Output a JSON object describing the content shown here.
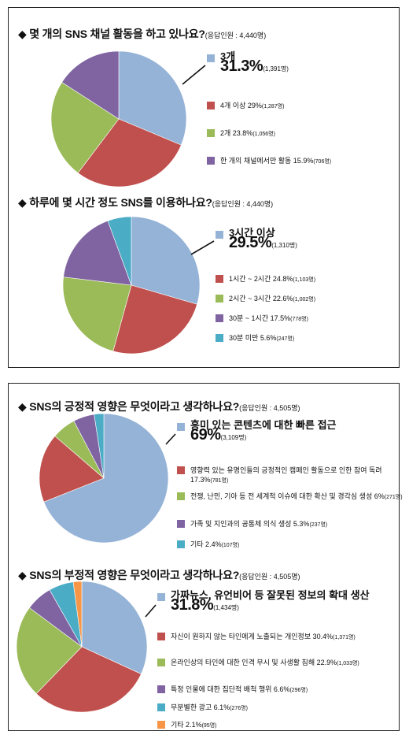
{
  "colors": {
    "blue": "#95b3d7",
    "red": "#c0504d",
    "green": "#9bbb59",
    "purple": "#8064a2",
    "teal": "#4bacc6",
    "orange": "#f79646"
  },
  "chart_data": [
    {
      "type": "pie",
      "title": "◆ 몇 개의 SNS 채널 활동을 하고 있나요?",
      "respondents": "(응답인원 : 4,440명)",
      "slices": [
        {
          "label": "3개",
          "pct": "31.3%",
          "count": "(1,391명)",
          "value": 31.3,
          "color": "#95b3d7"
        },
        {
          "label": "4개 이상 29%",
          "count": "(1,287명)",
          "value": 29.0,
          "color": "#c0504d"
        },
        {
          "label": "2개 23.8%",
          "count": "(1,056명)",
          "value": 23.8,
          "color": "#9bbb59"
        },
        {
          "label": "한 개의 채널에서만 활동 15.9%",
          "count": "(706명)",
          "value": 15.9,
          "color": "#8064a2"
        }
      ]
    },
    {
      "type": "pie",
      "title": "◆ 하루에 몇 시간 정도 SNS를 이용하나요?",
      "respondents": "(응답인원 : 4,440명)",
      "slices": [
        {
          "label": "3시간 이상",
          "pct": "29.5%",
          "count": "(1,310명)",
          "value": 29.5,
          "color": "#95b3d7"
        },
        {
          "label": "1시간 ~ 2시간 24.8%",
          "count": "(1,103명)",
          "value": 24.8,
          "color": "#c0504d"
        },
        {
          "label": "2시간 ~ 3시간 22.6%",
          "count": "(1,002명)",
          "value": 22.6,
          "color": "#9bbb59"
        },
        {
          "label": "30분 ~ 1시간 17.5%",
          "count": "(778명)",
          "value": 17.5,
          "color": "#8064a2"
        },
        {
          "label": "30분 미만 5.6%",
          "count": "(247명)",
          "value": 5.6,
          "color": "#4bacc6"
        }
      ]
    },
    {
      "type": "pie",
      "title": "◆ SNS의 긍정적 영향은 무엇이라고 생각하나요?",
      "respondents": "(응답인원 : 4,505명)",
      "slices": [
        {
          "label": "흥미 있는 콘텐츠에 대한 빠른 접근",
          "pct": "69%",
          "count": "(3,109명)",
          "value": 69.0,
          "color": "#95b3d7"
        },
        {
          "label": "영향력 있는 유명인들의 긍정적인 캠페인 활동으로 인한 참여 독려 17.3%",
          "count": "(781명)",
          "value": 17.3,
          "color": "#c0504d"
        },
        {
          "label": "전쟁, 난민, 기아 등 전 세계적 이슈에 대한 확산 및 경각심 생성 6%",
          "count": "(271명)",
          "value": 6.0,
          "color": "#9bbb59"
        },
        {
          "label": "가족 및 지인과의 공통체 의식 생성 5.3%",
          "count": "(237명)",
          "value": 5.3,
          "color": "#8064a2"
        },
        {
          "label": "기타 2.4%",
          "count": "(107명)",
          "value": 2.4,
          "color": "#4bacc6"
        }
      ]
    },
    {
      "type": "pie",
      "title": "◆ SNS의 부정적 영향은 무엇이라고 생각하나요?",
      "respondents": "(응답인원 : 4,505명)",
      "slices": [
        {
          "label": "가짜뉴스, 유언비어 등 잘못된 정보의 확대 생산",
          "pct": "31.8%",
          "count": "(1,434명)",
          "value": 31.8,
          "color": "#95b3d7"
        },
        {
          "label": "자신이 원하지 않는 타인에게 노출되는 개인정보 30.4%",
          "count": "(1,371명)",
          "value": 30.4,
          "color": "#c0504d"
        },
        {
          "label": "온라인상의 타인에 대한 인격 무시 및 사생활 침해 22.9%",
          "count": "(1,033명)",
          "value": 22.9,
          "color": "#9bbb59"
        },
        {
          "label": "특정 인물에 대한 집단적 배척 행위 6.6%",
          "count": "(296명)",
          "value": 6.6,
          "color": "#8064a2"
        },
        {
          "label": "무분별한 광고 6.1%",
          "count": "(276명)",
          "value": 6.1,
          "color": "#4bacc6"
        },
        {
          "label": "기타 2.1%",
          "count": "(95명)",
          "value": 2.1,
          "color": "#f79646"
        }
      ]
    }
  ]
}
